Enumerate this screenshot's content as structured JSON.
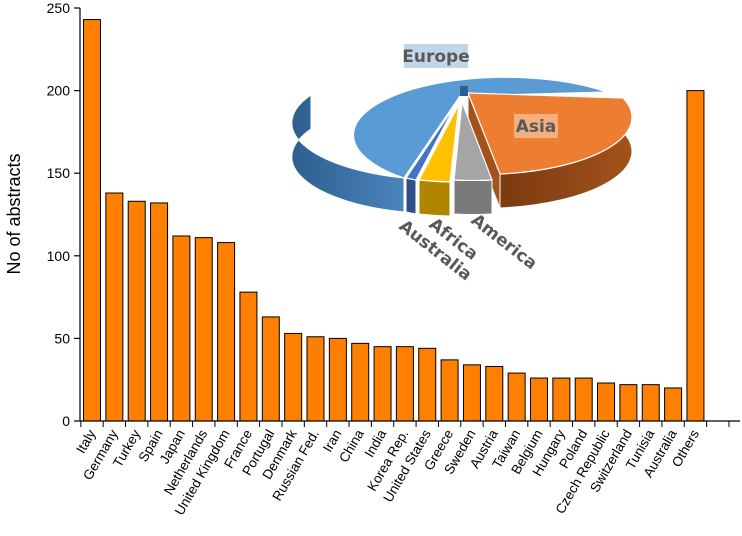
{
  "chart_data": [
    {
      "type": "bar",
      "categories": [
        "Italy",
        "Germany",
        "Turkey",
        "Spain",
        "Japan",
        "Netherlands",
        "United Kingdom",
        "France",
        "Portugal",
        "Denmark",
        "Russian Fed.",
        "Iran",
        "China",
        "India",
        "Korea Rep.",
        "United States",
        "Greece",
        "Sweden",
        "Austria",
        "Taiwan",
        "Belgium",
        "Hungary",
        "Poland",
        "Czech Republic",
        "Switzerland",
        "Tunisia",
        "Australia",
        "Others"
      ],
      "values": [
        243,
        138,
        133,
        132,
        112,
        111,
        108,
        78,
        63,
        53,
        51,
        50,
        47,
        45,
        45,
        44,
        37,
        34,
        33,
        29,
        26,
        26,
        26,
        23,
        22,
        22,
        20,
        200
      ],
      "ylabel": "No of abstracts",
      "ylim": [
        0,
        250
      ],
      "yticks": [
        0,
        50,
        100,
        150,
        200,
        250
      ],
      "bar_color": "#ff8000",
      "bar_edge_color": "#000000",
      "grid": false
    },
    {
      "type": "pie",
      "labels": [
        "Europe",
        "Asia",
        "America",
        "Africa",
        "Australia"
      ],
      "values": [
        68,
        20,
        6,
        4,
        2
      ],
      "colors": {
        "Europe": "#5b9bd5",
        "Asia": "#ed7d31",
        "America": "#a5a5a5",
        "Africa": "#ffc000",
        "Australia": "#4472c4"
      },
      "style": "3d-exploded",
      "label_placement": "Europe and Asia inside slices, others below rotated"
    }
  ]
}
